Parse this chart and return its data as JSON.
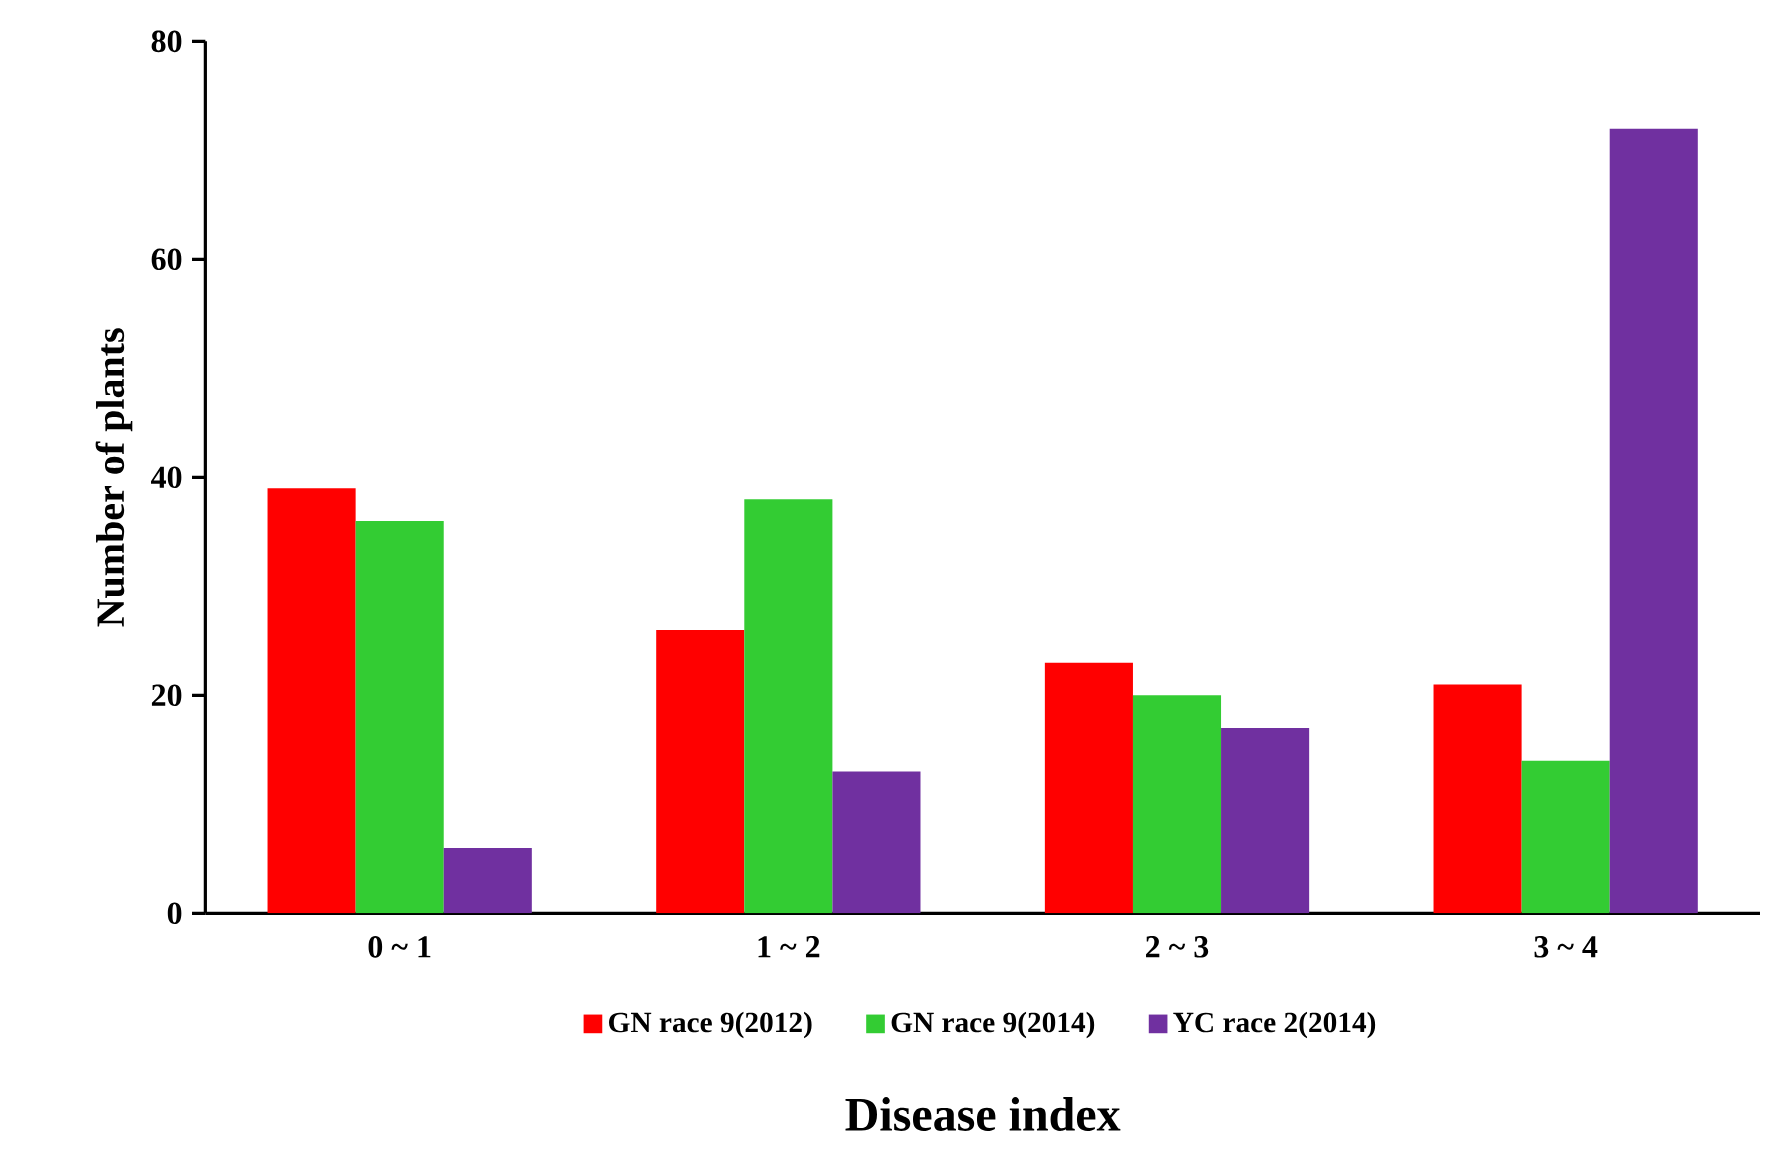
{
  "chart_data": {
    "type": "bar",
    "xlabel": "Disease index",
    "ylabel": "Number of plants",
    "categories": [
      "0 ~ 1",
      "1 ~ 2",
      "2 ~ 3",
      "3 ~ 4"
    ],
    "series": [
      {
        "name": "GN race 9(2012)",
        "color": "#ff0000",
        "values": [
          39,
          26,
          23,
          21
        ]
      },
      {
        "name": "GN race 9(2014)",
        "color": "#33cc33",
        "values": [
          36,
          38,
          20,
          14
        ]
      },
      {
        "name": "YC race 2(2014)",
        "color": "#7030a0",
        "values": [
          6,
          13,
          17,
          72
        ]
      }
    ],
    "ylim": [
      0,
      80
    ],
    "yticks": [
      0,
      20,
      40,
      60,
      80
    ],
    "legend": "bottom"
  }
}
